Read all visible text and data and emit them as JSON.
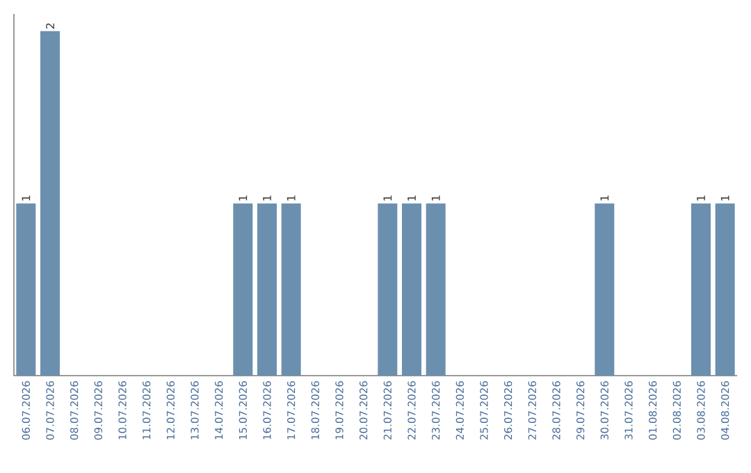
{
  "chart_data": {
    "type": "bar",
    "categories": [
      "06.07.2026",
      "07.07.2026",
      "08.07.2026",
      "09.07.2026",
      "10.07.2026",
      "11.07.2026",
      "12.07.2026",
      "13.07.2026",
      "14.07.2026",
      "15.07.2026",
      "16.07.2026",
      "17.07.2026",
      "18.07.2026",
      "19.07.2026",
      "20.07.2026",
      "21.07.2026",
      "22.07.2026",
      "23.07.2026",
      "24.07.2026",
      "25.07.2026",
      "26.07.2026",
      "27.07.2026",
      "28.07.2026",
      "29.07.2026",
      "30.07.2026",
      "31.07.2026",
      "01.08.2026",
      "02.08.2026",
      "03.08.2026",
      "04.08.2026"
    ],
    "values": [
      1,
      2,
      0,
      0,
      0,
      0,
      0,
      0,
      0,
      1,
      1,
      1,
      0,
      0,
      0,
      1,
      1,
      1,
      0,
      0,
      0,
      0,
      0,
      0,
      1,
      0,
      0,
      0,
      1,
      1
    ],
    "value_labels": [
      "1",
      "2",
      null,
      null,
      null,
      null,
      null,
      null,
      null,
      "1",
      "1",
      "1",
      null,
      null,
      null,
      "1",
      "1",
      "1",
      null,
      null,
      null,
      null,
      null,
      null,
      "1",
      null,
      null,
      null,
      "1",
      "1"
    ],
    "color": "#6b8fae",
    "ylim": [
      0,
      2.1
    ]
  }
}
